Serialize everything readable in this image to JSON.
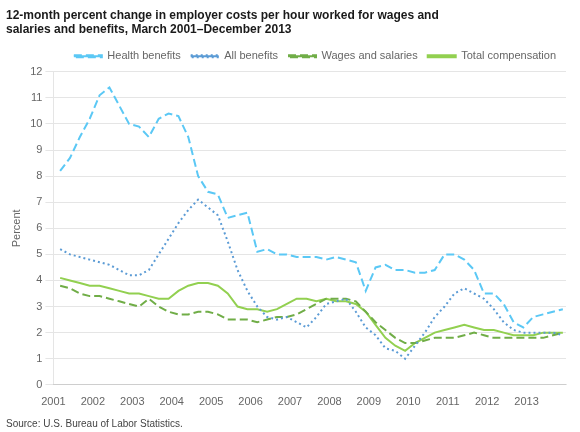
{
  "chart_data": {
    "type": "line",
    "title": "12-month percent change in employer costs per hour worked for wages and\nsalaries and benefits, March 2001–December 2013",
    "y_label": "Percent",
    "annotations": [
      "Source: U.S. Bureau of Labor Statistics."
    ],
    "x": [
      2001.17,
      2001.42,
      2001.67,
      2001.92,
      2002.17,
      2002.42,
      2002.67,
      2002.92,
      2003.17,
      2003.42,
      2003.67,
      2003.92,
      2004.17,
      2004.42,
      2004.67,
      2004.92,
      2005.17,
      2005.42,
      2005.67,
      2005.92,
      2006.17,
      2006.42,
      2006.67,
      2006.92,
      2007.17,
      2007.42,
      2007.67,
      2007.92,
      2008.17,
      2008.42,
      2008.67,
      2008.92,
      2009.17,
      2009.42,
      2009.67,
      2009.92,
      2010.17,
      2010.42,
      2010.67,
      2010.92,
      2011.17,
      2011.42,
      2011.67,
      2011.92,
      2012.17,
      2012.42,
      2012.67,
      2012.92,
      2013.17,
      2013.42,
      2013.67,
      2013.92
    ],
    "series": [
      {
        "name": "Health benefits",
        "color": "#5BC8F5",
        "line_style": "dashed",
        "values": [
          8.2,
          8.7,
          9.5,
          10.2,
          11.1,
          11.4,
          10.7,
          10.0,
          9.9,
          9.5,
          10.2,
          10.4,
          10.3,
          9.5,
          8.0,
          7.4,
          7.3,
          6.4,
          6.5,
          6.6,
          5.1,
          5.2,
          5.0,
          5.0,
          4.9,
          4.9,
          4.9,
          4.8,
          4.9,
          4.8,
          4.7,
          3.6,
          4.5,
          4.6,
          4.4,
          4.4,
          4.3,
          4.3,
          4.4,
          5.0,
          5.0,
          4.8,
          4.4,
          3.5,
          3.5,
          3.1,
          2.4,
          2.2,
          2.6,
          2.7,
          2.8,
          2.9
        ]
      },
      {
        "name": "All benefits",
        "color": "#5B9BD5",
        "line_style": "dotted",
        "values": [
          5.2,
          5.0,
          4.9,
          4.8,
          4.7,
          4.6,
          4.4,
          4.2,
          4.2,
          4.4,
          5.0,
          5.6,
          6.2,
          6.7,
          7.1,
          6.8,
          6.5,
          5.5,
          4.4,
          3.6,
          3.0,
          2.6,
          2.5,
          2.6,
          2.4,
          2.2,
          2.6,
          3.1,
          3.2,
          3.3,
          2.8,
          2.2,
          1.9,
          1.4,
          1.3,
          1.0,
          1.5,
          2.0,
          2.6,
          3.0,
          3.5,
          3.7,
          3.5,
          3.3,
          2.9,
          2.4,
          2.1,
          2.0,
          2.0,
          2.0,
          2.0,
          1.9
        ]
      },
      {
        "name": "Wages and salaries",
        "color": "#70AD47",
        "line_style": "dashed",
        "values": [
          3.8,
          3.7,
          3.5,
          3.4,
          3.4,
          3.3,
          3.2,
          3.1,
          3.0,
          3.3,
          3.0,
          2.8,
          2.7,
          2.7,
          2.8,
          2.8,
          2.7,
          2.5,
          2.5,
          2.5,
          2.4,
          2.5,
          2.6,
          2.6,
          2.7,
          2.9,
          3.1,
          3.3,
          3.3,
          3.3,
          3.2,
          2.8,
          2.4,
          2.1,
          1.8,
          1.6,
          1.6,
          1.7,
          1.8,
          1.8,
          1.8,
          1.9,
          2.0,
          1.9,
          1.8,
          1.8,
          1.8,
          1.8,
          1.8,
          1.8,
          1.9,
          2.0
        ]
      },
      {
        "name": "Total compensation",
        "color": "#92D050",
        "line_style": "solid",
        "values": [
          4.1,
          4.0,
          3.9,
          3.8,
          3.8,
          3.7,
          3.6,
          3.5,
          3.5,
          3.4,
          3.3,
          3.3,
          3.6,
          3.8,
          3.9,
          3.9,
          3.8,
          3.5,
          3.0,
          2.9,
          2.9,
          2.8,
          2.9,
          3.1,
          3.3,
          3.3,
          3.2,
          3.3,
          3.2,
          3.2,
          3.1,
          2.8,
          2.3,
          1.8,
          1.5,
          1.3,
          1.6,
          1.8,
          2.0,
          2.1,
          2.2,
          2.3,
          2.2,
          2.1,
          2.1,
          2.0,
          1.9,
          1.9,
          1.9,
          2.0,
          2.0,
          2.0
        ]
      }
    ],
    "xlim": [
      2001,
      2014
    ],
    "xticks": [
      2001,
      2002,
      2003,
      2004,
      2005,
      2006,
      2007,
      2008,
      2009,
      2010,
      2011,
      2012,
      2013
    ],
    "ylim": [
      0,
      12
    ],
    "yticks": [
      0,
      1,
      2,
      3,
      4,
      5,
      6,
      7,
      8,
      9,
      10,
      11,
      12
    ],
    "grid": "y",
    "legend": "upper right"
  }
}
